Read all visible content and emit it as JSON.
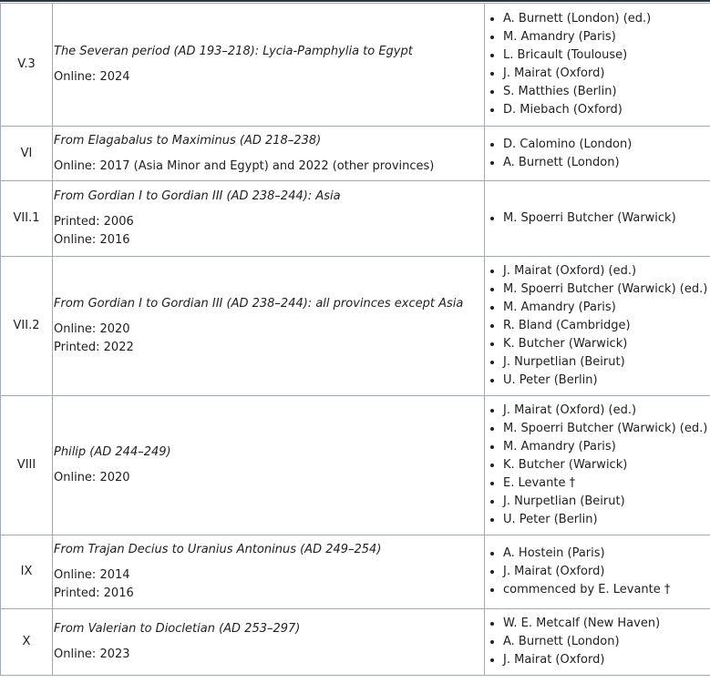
{
  "rows": [
    {
      "vol": "V.3",
      "title": "The Severan period (AD 193–218): Lycia-Pamphylia to Egypt",
      "pub": [
        "Online: 2024"
      ],
      "authors": [
        "A. Burnett (London) (ed.)",
        "M. Amandry (Paris)",
        "L. Bricault (Toulouse)",
        "J. Mairat (Oxford)",
        "S. Matthies (Berlin)",
        "D. Miebach (Oxford)"
      ]
    },
    {
      "vol": "VI",
      "title": "From Elagabalus to Maximinus (AD 218–238)",
      "pub": [
        "Online: 2017 (Asia Minor and Egypt) and 2022 (other provinces)"
      ],
      "authors": [
        "D. Calomino (London)",
        "A. Burnett (London)"
      ]
    },
    {
      "vol": "VII.1",
      "title": "From Gordian I to Gordian III (AD 238–244): Asia",
      "pub": [
        "Printed: 2006",
        "Online: 2016"
      ],
      "authors": [
        "M. Spoerri Butcher (Warwick)"
      ]
    },
    {
      "vol": "VII.2",
      "title": "From Gordian I to Gordian III (AD 238–244): all provinces except Asia",
      "pub": [
        "Online: 2020",
        "Printed: 2022"
      ],
      "authors": [
        "J. Mairat (Oxford) (ed.)",
        "M. Spoerri Butcher (Warwick) (ed.)",
        "M. Amandry (Paris)",
        "R. Bland (Cambridge)",
        "K. Butcher (Warwick)",
        "J. Nurpetlian (Beirut)",
        "U. Peter (Berlin)"
      ]
    },
    {
      "vol": "VIII",
      "title": "Philip (AD 244–249)",
      "pub": [
        "Online: 2020"
      ],
      "authors": [
        "J. Mairat (Oxford) (ed.)",
        "M. Spoerri Butcher (Warwick) (ed.)",
        "M. Amandry (Paris)",
        "K. Butcher (Warwick)",
        "E. Levante †",
        "J. Nurpetlian (Beirut)",
        "U. Peter (Berlin)"
      ]
    },
    {
      "vol": "IX",
      "title": "From Trajan Decius to Uranius Antoninus (AD 249–254)",
      "pub": [
        "Online: 2014",
        "Printed: 2016"
      ],
      "authors": [
        "A. Hostein (Paris)",
        "J. Mairat (Oxford)",
        "commenced by E. Levante †"
      ]
    },
    {
      "vol": "X",
      "title": "From Valerian to Diocletian (AD 253–297)",
      "pub": [
        "Online: 2023"
      ],
      "authors": [
        "W. E. Metcalf (New Haven)",
        "A. Burnett (London)",
        "J. Mairat (Oxford)"
      ]
    }
  ]
}
